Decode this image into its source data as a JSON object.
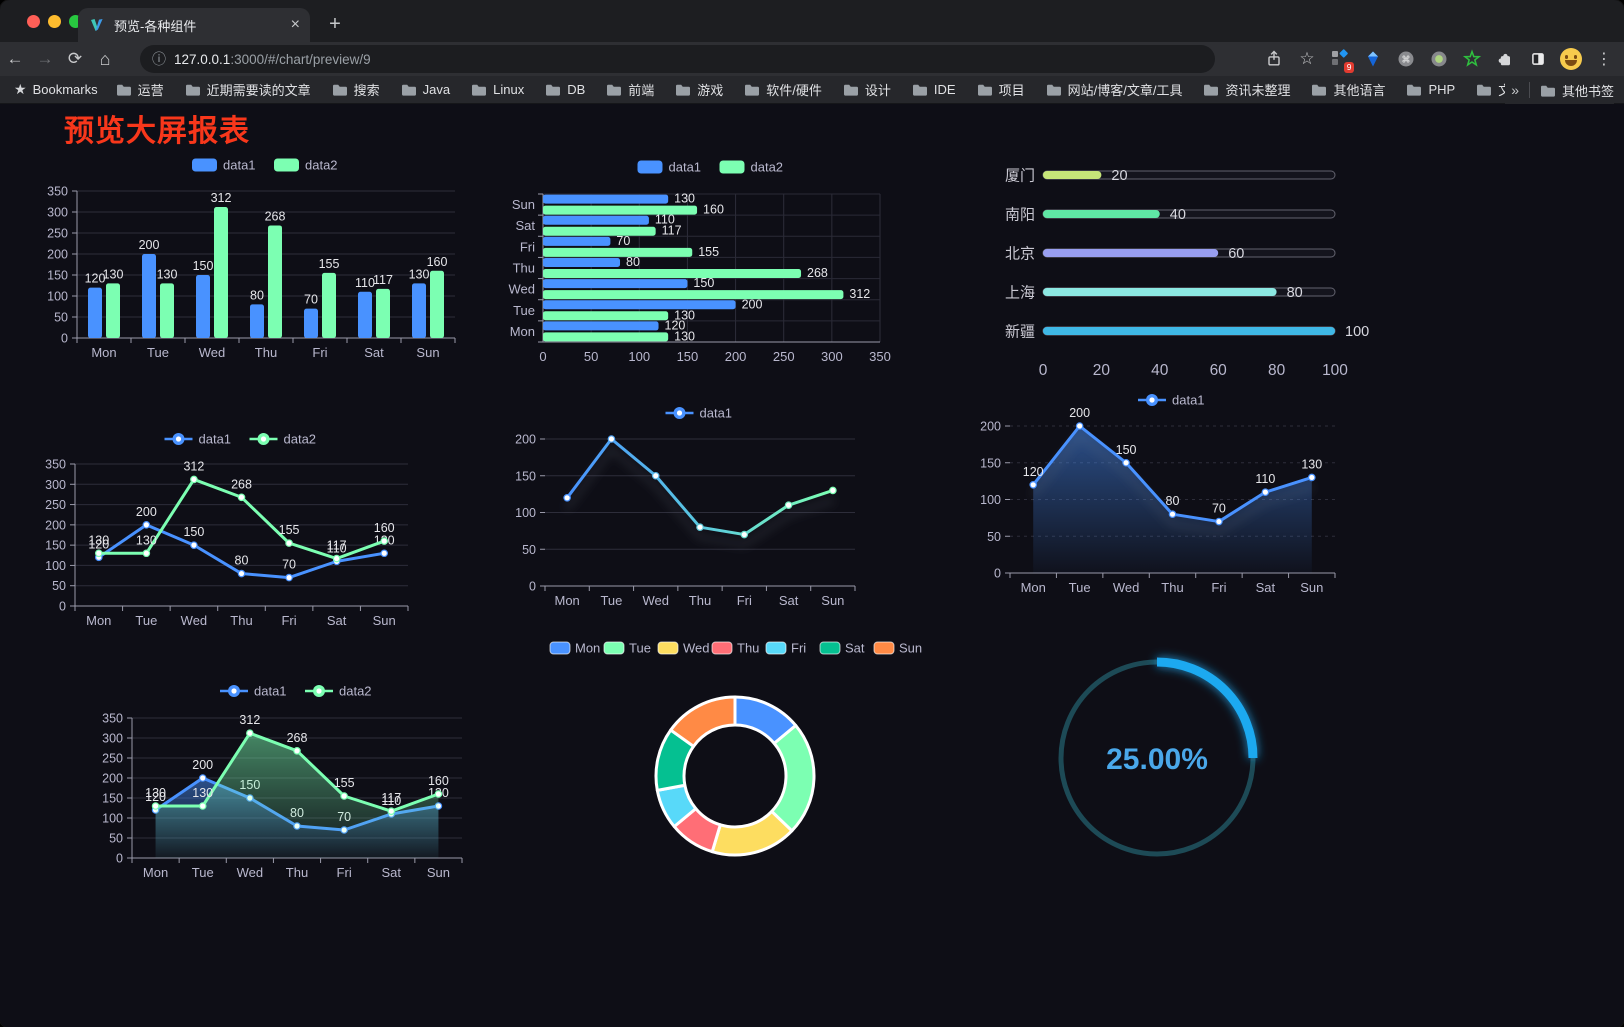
{
  "browser": {
    "tab": {
      "title": "预览-各种组件"
    },
    "address": {
      "url_host": "127.0.0.1",
      "url_rest": ":3000/#/chart/preview/9"
    },
    "icon_glyphs": {
      "back": "←",
      "forward": "→",
      "reload": "⟳",
      "home": "⌂",
      "info": "ⓘ",
      "star": "☆",
      "menu": "⋮",
      "command": "⌘",
      "bookmarks_star": "★",
      "close_tab": "×",
      "new_tab": "+",
      "overflow": "»"
    },
    "extension_badge": "9",
    "bookmarks_bar": {
      "bookmarks_label": "Bookmarks",
      "folders": [
        "运营",
        "近期需要读的文章",
        "搜索",
        "Java",
        "Linux",
        "DB",
        "前端",
        "游戏",
        "软件/硬件",
        "设计",
        "IDE",
        "项目",
        "网站/博客/文章/工具",
        "资讯未整理",
        "其他语言",
        "PHP",
        "文件服务器"
      ],
      "other_bookmarks_label": "其他书签"
    }
  },
  "page": {
    "title": "预览大屏报表",
    "title_color": "#f8371b",
    "background": "#0e0e16"
  },
  "chart_data": [
    {
      "id": "bar-vertical",
      "type": "bar",
      "categories": [
        "Mon",
        "Tue",
        "Wed",
        "Thu",
        "Fri",
        "Sat",
        "Sun"
      ],
      "series": [
        {
          "name": "data1",
          "color": "#4992ff",
          "values": [
            120,
            200,
            150,
            80,
            70,
            110,
            130
          ]
        },
        {
          "name": "data2",
          "color": "#7cffb2",
          "values": [
            130,
            130,
            312,
            268,
            155,
            117,
            160
          ]
        }
      ],
      "ylim": [
        0,
        350
      ],
      "ytick_step": 50,
      "legend_position": "top",
      "grid": true
    },
    {
      "id": "bar-horizontal",
      "type": "bar-horizontal",
      "categories": [
        "Mon",
        "Tue",
        "Wed",
        "Thu",
        "Fri",
        "Sat",
        "Sun"
      ],
      "series": [
        {
          "name": "data1",
          "color": "#4992ff",
          "values": [
            120,
            200,
            150,
            80,
            70,
            110,
            130
          ]
        },
        {
          "name": "data2",
          "color": "#7cffb2",
          "values": [
            130,
            130,
            312,
            268,
            155,
            117,
            160
          ]
        }
      ],
      "xlim": [
        0,
        350
      ],
      "xtick_step": 50,
      "legend_position": "top",
      "grid": true
    },
    {
      "id": "progress",
      "type": "progress-bars",
      "rows": [
        {
          "label": "厦门",
          "value": 20,
          "color": "#c6e579"
        },
        {
          "label": "南阳",
          "value": 40,
          "color": "#5fe7a5"
        },
        {
          "label": "北京",
          "value": 60,
          "color": "#989ef0"
        },
        {
          "label": "上海",
          "value": 80,
          "color": "#8ce8e2"
        },
        {
          "label": "新疆",
          "value": 100,
          "color": "#3fb8e6"
        }
      ],
      "xlim": [
        0,
        100
      ],
      "xticks": [
        0,
        20,
        40,
        60,
        80,
        100
      ]
    },
    {
      "id": "line-two",
      "type": "line",
      "categories": [
        "Mon",
        "Tue",
        "Wed",
        "Thu",
        "Fri",
        "Sat",
        "Sun"
      ],
      "series": [
        {
          "name": "data1",
          "color": "#4992ff",
          "values": [
            120,
            200,
            150,
            80,
            70,
            110,
            130
          ]
        },
        {
          "name": "data2",
          "color": "#7cffb2",
          "values": [
            130,
            130,
            312,
            268,
            155,
            117,
            160
          ]
        }
      ],
      "ylim": [
        0,
        350
      ],
      "ytick_step": 50,
      "show_labels": true,
      "legend_position": "top"
    },
    {
      "id": "line-gradient",
      "type": "line",
      "categories": [
        "Mon",
        "Tue",
        "Wed",
        "Thu",
        "Fri",
        "Sat",
        "Sun"
      ],
      "series": [
        {
          "name": "data1",
          "color": "#4992ff",
          "gradient": [
            "#4992ff",
            "#5ac8e0",
            "#7cffb2"
          ],
          "values": [
            120,
            200,
            150,
            80,
            70,
            110,
            130
          ]
        }
      ],
      "ylim": [
        0,
        200
      ],
      "ytick_step": 50,
      "show_labels": false,
      "legend_position": "top",
      "shadow": true
    },
    {
      "id": "line-area",
      "type": "area",
      "categories": [
        "Mon",
        "Tue",
        "Wed",
        "Thu",
        "Fri",
        "Sat",
        "Sun"
      ],
      "series": [
        {
          "name": "data1",
          "color": "#4992ff",
          "values": [
            120,
            200,
            150,
            80,
            70,
            110,
            130
          ]
        }
      ],
      "ylim": [
        0,
        200
      ],
      "ytick_step": 50,
      "show_labels": true,
      "legend_position": "top",
      "dashed_grid": true,
      "shadow": true
    },
    {
      "id": "area-two",
      "type": "area",
      "categories": [
        "Mon",
        "Tue",
        "Wed",
        "Thu",
        "Fri",
        "Sat",
        "Sun"
      ],
      "series": [
        {
          "name": "data1",
          "color": "#4992ff",
          "values": [
            120,
            200,
            150,
            80,
            70,
            110,
            130
          ]
        },
        {
          "name": "data2",
          "color": "#7cffb2",
          "values": [
            130,
            130,
            312,
            268,
            155,
            117,
            160
          ]
        }
      ],
      "ylim": [
        0,
        350
      ],
      "ytick_step": 50,
      "show_labels": true,
      "legend_position": "top"
    },
    {
      "id": "donut",
      "type": "pie",
      "categories": [
        "Mon",
        "Tue",
        "Wed",
        "Thu",
        "Fri",
        "Sat",
        "Sun"
      ],
      "values": [
        120,
        200,
        150,
        80,
        70,
        110,
        130
      ],
      "colors": [
        "#4992ff",
        "#7cffb2",
        "#fddd60",
        "#ff6e76",
        "#58d9f9",
        "#05c091",
        "#ff8a45"
      ],
      "legend_position": "top",
      "inner_radius_ratio": 0.65,
      "border_color": "#ffffff"
    },
    {
      "id": "gauge",
      "type": "gauge",
      "value": 25,
      "label": "25.00%",
      "color": "#1fa9f0",
      "track_color": "#1d4a56",
      "text_color": "#4aa8ea"
    }
  ]
}
